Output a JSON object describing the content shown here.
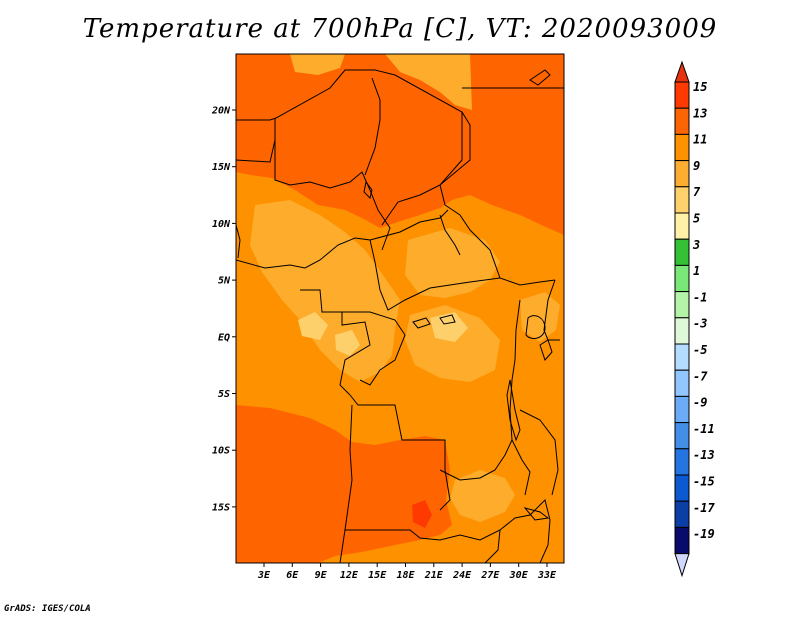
{
  "title": "Temperature at 700hPa [C], VT: 2020093009",
  "credit": "GrADS: IGES/COLA",
  "map": {
    "lat_labels": [
      "20N",
      "15N",
      "10N",
      "5N",
      "EQ",
      "5S",
      "10S",
      "15S"
    ],
    "lon_labels": [
      "3E",
      "6E",
      "9E",
      "12E",
      "15E",
      "18E",
      "21E",
      "24E",
      "27E",
      "30E",
      "33E"
    ]
  },
  "colorbar": {
    "labels": [
      "15",
      "13",
      "11",
      "9",
      "7",
      "5",
      "3",
      "1",
      "-1",
      "-3",
      "-5",
      "-7",
      "-9",
      "-11",
      "-13",
      "-15",
      "-17",
      "-19"
    ],
    "colors": [
      "#ff3a00",
      "#fe6502",
      "#fe9200",
      "#fdad2f",
      "#fed16d",
      "#fff2a8",
      "#34c135",
      "#7ae878",
      "#b4f4a9",
      "#dff8da",
      "#b3dcfe",
      "#91c7fe",
      "#6bacf8",
      "#438ee8",
      "#2474e2",
      "#0d59d1",
      "#0b3fa6",
      "#080a6c"
    ],
    "top_arrow_color": "#e8330f",
    "bottom_arrow_color": "#d0d9fb"
  },
  "field_colors": {
    "c9": "#fe9100",
    "c7": "#fdac2c",
    "c5": "#fed06c",
    "c11": "#fe6500",
    "c13": "#ff3a00"
  }
}
